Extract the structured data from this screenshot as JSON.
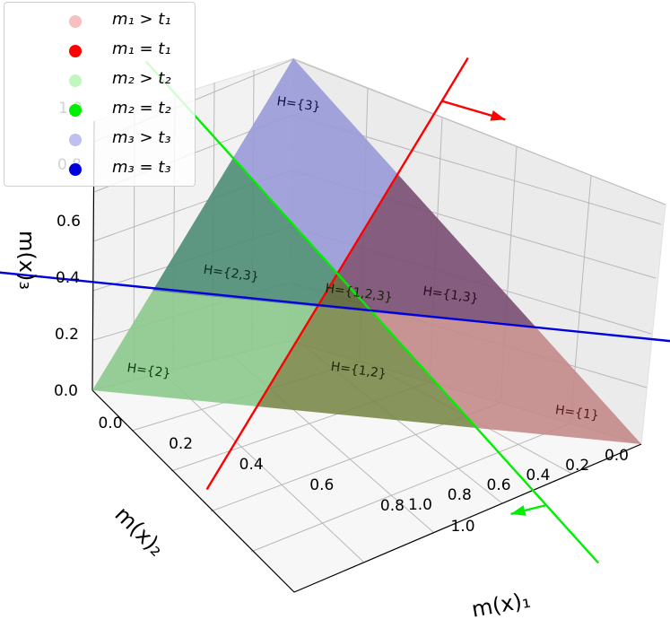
{
  "chart_data": {
    "type": "3d-surface",
    "axes": {
      "x": {
        "label": "m(x)₁",
        "ticks": [
          "0.0",
          "0.2",
          "0.4",
          "0.6",
          "0.8",
          "1.0"
        ],
        "range": [
          0,
          1
        ],
        "direction": "reversed"
      },
      "y": {
        "label": "m(x)₂",
        "ticks": [
          "0.0",
          "0.2",
          "0.4",
          "0.6",
          "0.8",
          "1.0"
        ],
        "range": [
          0,
          1
        ]
      },
      "z": {
        "label": "m(x)₃",
        "ticks": [
          "0.0",
          "0.2",
          "0.4",
          "0.6",
          "0.8",
          "1.0"
        ],
        "range": [
          0,
          1
        ]
      }
    },
    "grid": true,
    "legend": {
      "placement": "top-left",
      "entries": [
        {
          "label": "m₁ > t₁",
          "color": "#ef8080",
          "alpha": 0.5
        },
        {
          "label": "m₁ = t₁",
          "color": "#ff0000",
          "alpha": 1.0
        },
        {
          "label": "m₂ > t₂",
          "color": "#80ef80",
          "alpha": 0.5
        },
        {
          "label": "m₂ = t₂",
          "color": "#00ee00",
          "alpha": 1.0
        },
        {
          "label": "m₃ > t₃",
          "color": "#8080e6",
          "alpha": 0.5
        },
        {
          "label": "m₃ = t₃",
          "color": "#0000dd",
          "alpha": 1.0
        }
      ]
    },
    "simplex_vertices": [
      [
        1,
        0,
        0
      ],
      [
        0,
        1,
        0
      ],
      [
        0,
        0,
        1
      ]
    ],
    "thresholds": {
      "t1": 0.3,
      "t2": 0.3,
      "t3": 0.3
    },
    "colors": {
      "m1": "#ff0000",
      "m2": "#00ee00",
      "m3": "#0000dd",
      "region_1": "#c48a8a",
      "region_2": "#8cc98c",
      "region_3": "#9a9ad8",
      "region_13": "#7a4f73",
      "region_23": "#4e8d74",
      "region_12": "#7a8a4a",
      "region_123": "#5b6436"
    },
    "region_labels": [
      "H={1}",
      "H={2}",
      "H={3}",
      "H={1,3}",
      "H={2,3}",
      "H={1,2}",
      "H={1,2,3}"
    ]
  }
}
